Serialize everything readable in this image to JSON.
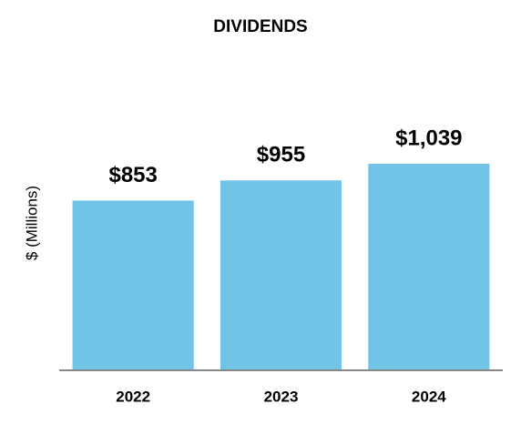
{
  "chart_data": {
    "type": "bar",
    "title": "DIVIDENDS",
    "y_label": "$ (Millions)",
    "categories": [
      "2022",
      "2023",
      "2024"
    ],
    "values": [
      853,
      955,
      1039
    ],
    "value_labels": [
      "$853",
      "$955",
      "$1,039"
    ],
    "color": "#72c4e6",
    "ylim": [
      0,
      1200
    ]
  }
}
